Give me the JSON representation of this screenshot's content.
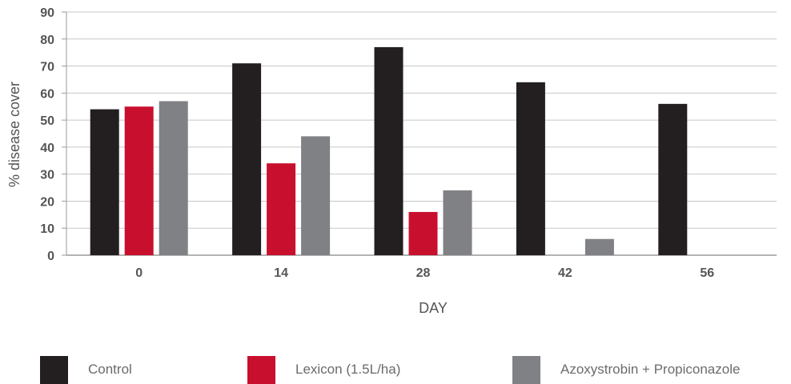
{
  "chart_data": {
    "type": "bar",
    "xlabel": "DAY",
    "ylabel": "% disease cover",
    "ylim": [
      0,
      90
    ],
    "yticks": [
      "0",
      "10",
      "20",
      "30",
      "40",
      "50",
      "60",
      "70",
      "80",
      "90"
    ],
    "categories": [
      "0",
      "14",
      "28",
      "42",
      "56"
    ],
    "series": [
      {
        "name": "Control",
        "color": "#231f20",
        "values": [
          54,
          71,
          77,
          64,
          56
        ]
      },
      {
        "name": "Lexicon (1.5L/ha)",
        "color": "#c8102e",
        "values": [
          55,
          34,
          16,
          0,
          0
        ]
      },
      {
        "name": "Azoxystrobin + Propiconazole",
        "color": "#808184",
        "values": [
          57,
          44,
          24,
          6,
          0
        ]
      }
    ],
    "grid": true,
    "legend_position": "bottom"
  }
}
